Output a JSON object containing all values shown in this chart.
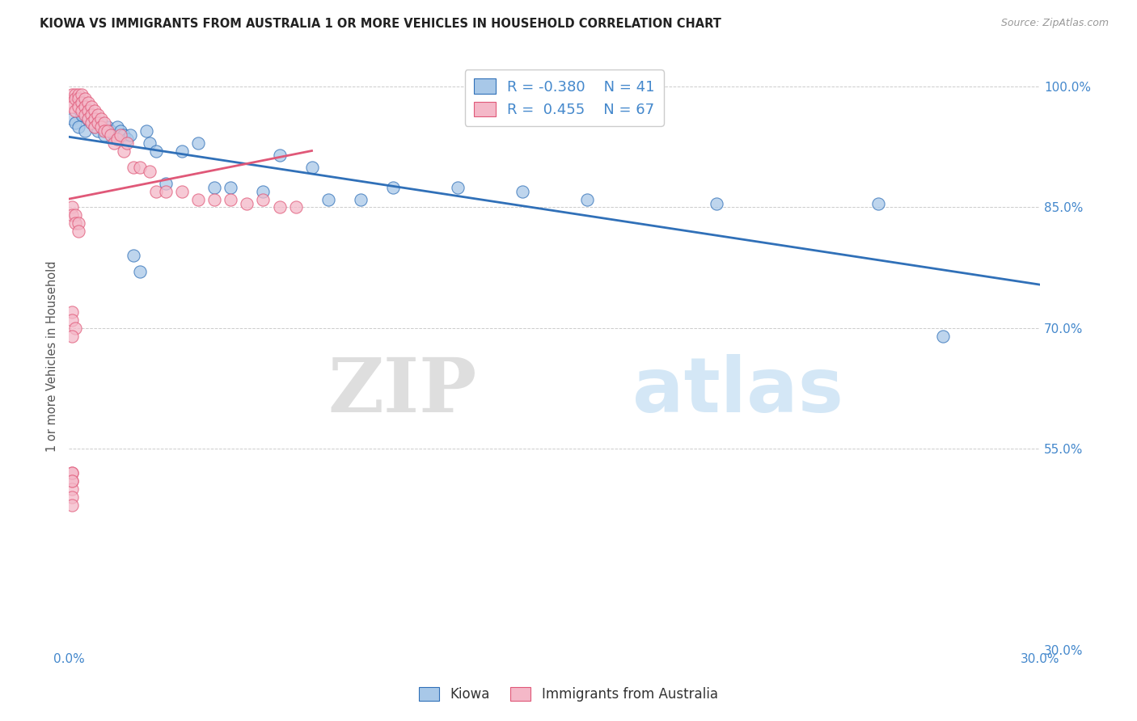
{
  "title": "KIOWA VS IMMIGRANTS FROM AUSTRALIA 1 OR MORE VEHICLES IN HOUSEHOLD CORRELATION CHART",
  "source": "Source: ZipAtlas.com",
  "ylabel": "1 or more Vehicles in Household",
  "legend_label1": "Kiowa",
  "legend_label2": "Immigrants from Australia",
  "R1": -0.38,
  "N1": 41,
  "R2": 0.455,
  "N2": 67,
  "color_blue": "#a8c8e8",
  "color_pink": "#f4b8c8",
  "color_line_blue": "#3070b8",
  "color_line_pink": "#e05878",
  "xlim": [
    0.0,
    0.3
  ],
  "ylim": [
    0.3,
    1.03
  ],
  "ytick_vals": [
    1.0,
    0.85,
    0.7,
    0.55,
    0.3
  ],
  "ytick_labels": [
    "100.0%",
    "85.0%",
    "70.0%",
    "55.0%",
    "30.0%"
  ],
  "watermark_zip": "ZIP",
  "watermark_atlas": "atlas",
  "background_color": "#ffffff",
  "grid_color": "#cccccc",
  "blue_points_x": [
    0.001,
    0.002,
    0.003,
    0.004,
    0.005,
    0.006,
    0.007,
    0.008,
    0.009,
    0.01,
    0.011,
    0.012,
    0.013,
    0.014,
    0.015,
    0.016,
    0.017,
    0.018,
    0.019,
    0.02,
    0.022,
    0.024,
    0.025,
    0.027,
    0.03,
    0.035,
    0.04,
    0.045,
    0.05,
    0.06,
    0.065,
    0.075,
    0.08,
    0.09,
    0.1,
    0.12,
    0.14,
    0.16,
    0.2,
    0.25,
    0.27
  ],
  "blue_points_y": [
    0.96,
    0.955,
    0.95,
    0.965,
    0.945,
    0.96,
    0.955,
    0.95,
    0.945,
    0.955,
    0.94,
    0.95,
    0.945,
    0.94,
    0.95,
    0.945,
    0.94,
    0.935,
    0.94,
    0.79,
    0.77,
    0.945,
    0.93,
    0.92,
    0.88,
    0.92,
    0.93,
    0.875,
    0.875,
    0.87,
    0.915,
    0.9,
    0.86,
    0.86,
    0.875,
    0.875,
    0.87,
    0.86,
    0.855,
    0.855,
    0.69
  ],
  "pink_points_x": [
    0.001,
    0.001,
    0.001,
    0.002,
    0.002,
    0.002,
    0.003,
    0.003,
    0.003,
    0.004,
    0.004,
    0.004,
    0.005,
    0.005,
    0.005,
    0.006,
    0.006,
    0.006,
    0.007,
    0.007,
    0.007,
    0.008,
    0.008,
    0.008,
    0.009,
    0.009,
    0.01,
    0.01,
    0.011,
    0.011,
    0.012,
    0.013,
    0.014,
    0.015,
    0.016,
    0.017,
    0.018,
    0.02,
    0.022,
    0.025,
    0.027,
    0.03,
    0.035,
    0.04,
    0.045,
    0.05,
    0.055,
    0.06,
    0.065,
    0.07,
    0.001,
    0.001,
    0.002,
    0.002,
    0.003,
    0.003,
    0.001,
    0.001,
    0.002,
    0.001,
    0.001,
    0.001,
    0.001,
    0.001,
    0.001,
    0.001,
    0.001
  ],
  "pink_points_y": [
    0.99,
    0.98,
    0.975,
    0.99,
    0.985,
    0.97,
    0.99,
    0.985,
    0.975,
    0.99,
    0.98,
    0.97,
    0.985,
    0.975,
    0.965,
    0.98,
    0.97,
    0.96,
    0.975,
    0.965,
    0.955,
    0.97,
    0.96,
    0.95,
    0.965,
    0.955,
    0.96,
    0.95,
    0.955,
    0.945,
    0.945,
    0.94,
    0.93,
    0.935,
    0.94,
    0.92,
    0.93,
    0.9,
    0.9,
    0.895,
    0.87,
    0.87,
    0.87,
    0.86,
    0.86,
    0.86,
    0.855,
    0.86,
    0.85,
    0.85,
    0.85,
    0.84,
    0.84,
    0.83,
    0.83,
    0.82,
    0.72,
    0.71,
    0.7,
    0.69,
    0.52,
    0.51,
    0.5,
    0.49,
    0.48,
    0.52,
    0.51
  ]
}
